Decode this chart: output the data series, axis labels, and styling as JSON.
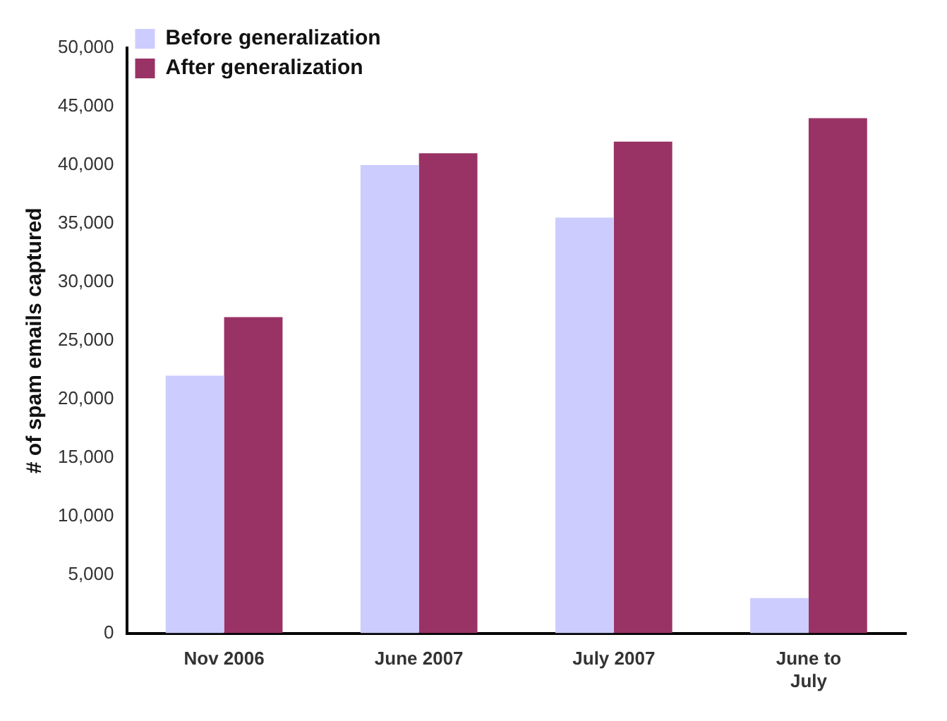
{
  "chart_data": {
    "type": "bar",
    "ylabel": "# of spam emails captured",
    "categories": [
      "Nov 2006",
      "June 2007",
      "July 2007",
      "June to July"
    ],
    "series": [
      {
        "name": "Before generalization",
        "color": "#ccccff",
        "values": [
          22000,
          40000,
          35500,
          3000
        ]
      },
      {
        "name": "After generalization",
        "color": "#993366",
        "values": [
          27000,
          41000,
          42000,
          44000
        ]
      }
    ],
    "ylim": [
      0,
      50000
    ],
    "yticks": [
      0,
      {
        "value": 5000,
        "label": "5,000"
      },
      {
        "value": 10000,
        "label": "10,000"
      },
      {
        "value": 15000,
        "label": "15,000"
      },
      {
        "value": 20000,
        "label": "20,000"
      },
      {
        "value": 25000,
        "label": "25,000"
      },
      {
        "value": 30000,
        "label": "30,000"
      },
      {
        "value": 35000,
        "label": "35,000"
      },
      {
        "value": 40000,
        "label": "40,000"
      },
      {
        "value": 45000,
        "label": "45,000"
      },
      {
        "value": 50000,
        "label": "50,000"
      }
    ],
    "grid": false,
    "legend": "top left"
  }
}
